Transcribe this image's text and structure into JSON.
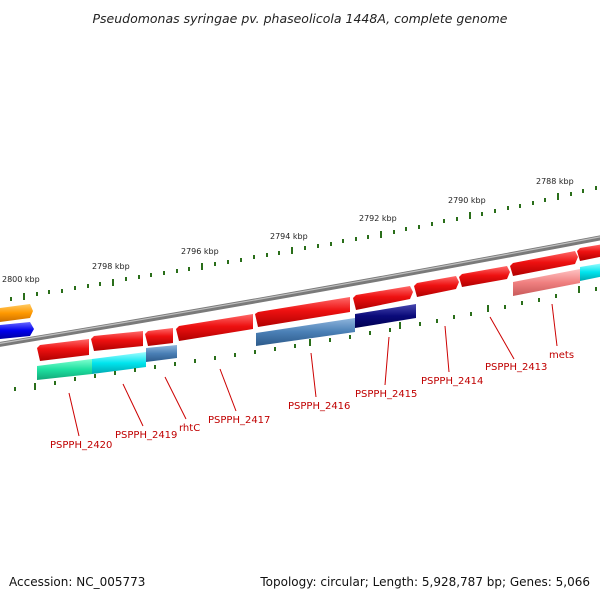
{
  "title": "Pseudomonas syringae pv. phaseolicola 1448A, complete genome",
  "footer": {
    "accession": "Accession: NC_005773",
    "summary": "Topology: circular; Length: 5,928,787 bp; Genes: 5,066"
  },
  "kbp_labels": [
    "2800 kbp",
    "2798 kbp",
    "2796 kbp",
    "2794 kbp",
    "2792 kbp",
    "2790 kbp",
    "2788 kbp"
  ],
  "gene_labels": [
    "PSPPH_2420",
    "PSPPH_2419",
    "rhtC",
    "PSPPH_2417",
    "PSPPH_2416",
    "PSPPH_2415",
    "PSPPH_2414",
    "PSPPH_2413",
    "mets"
  ],
  "colors": {
    "backbone": "#7a7a7a",
    "tick": "#2a6e1a",
    "gene_red": "#ee1111",
    "label_red": "#cc0000",
    "teal": "#1ee0a0",
    "cyan": "#00e5ee",
    "steel_blue": "#4a7fb5",
    "navy": "#0a0a7a",
    "salmon": "#f08080",
    "orange": "#ff9900",
    "blue": "#0000ee"
  }
}
